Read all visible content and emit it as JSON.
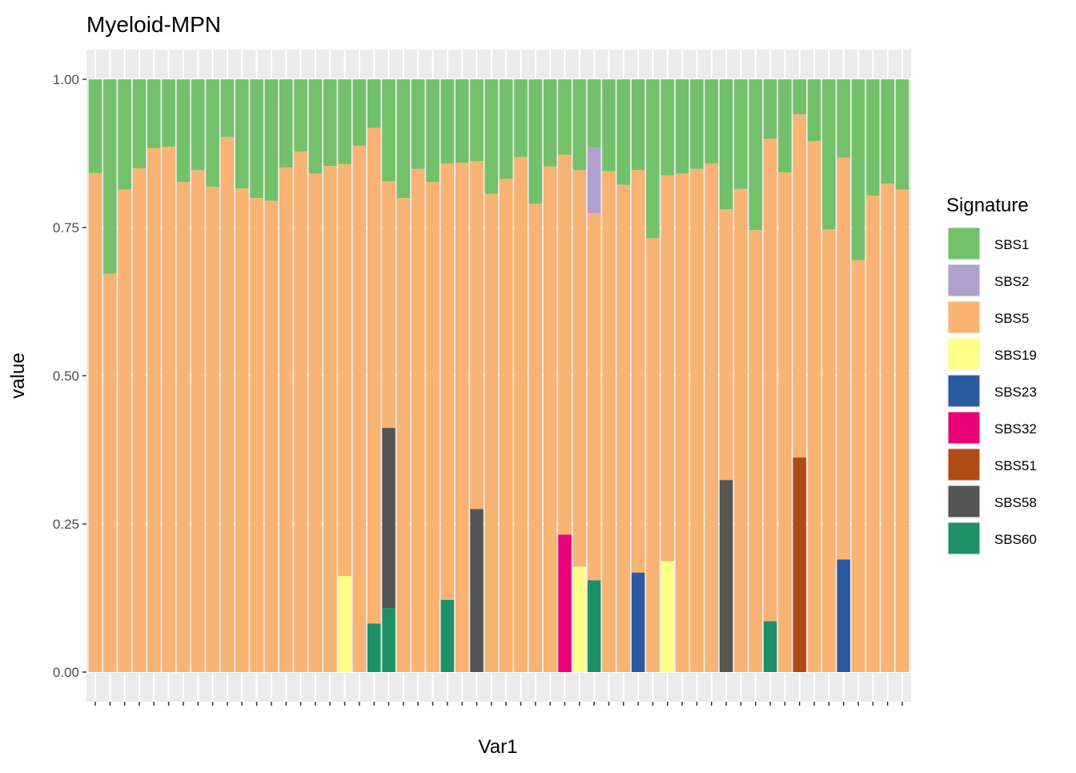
{
  "chart_data": {
    "type": "stacked_bar",
    "title": "Myeloid-MPN",
    "x_label": "Var1",
    "y_label": "value",
    "legend_title": "Signature",
    "categories": [
      null,
      null,
      null,
      null,
      null,
      null,
      null,
      null,
      null,
      null,
      null,
      null,
      null,
      null,
      null,
      null,
      null,
      null,
      null,
      null,
      null,
      null,
      null,
      null,
      null,
      null,
      null,
      null,
      null,
      null,
      null,
      null,
      null,
      null,
      null,
      null,
      null,
      null,
      null,
      null,
      null,
      null,
      null,
      null,
      null,
      null,
      null,
      null,
      null,
      null,
      null,
      null,
      null,
      null,
      null,
      null
    ],
    "ylim": [
      -0.05,
      1.05
    ],
    "yticks": [
      {
        "value": 0,
        "label": "0.00"
      },
      0.25,
      {
        "value": 0.5,
        "label": "0.50"
      },
      0.75,
      {
        "value": 1,
        "label": "1.00"
      }
    ],
    "grid": true,
    "series": [
      {
        "name": "SBS1",
        "color": "#72c16a",
        "values": [
          0.158,
          0.328,
          0.186,
          0.15,
          0.116,
          0.114,
          0.173,
          0.153,
          0.181,
          0.097,
          0.184,
          0.2,
          0.205,
          0.149,
          0.122,
          0.159,
          0.146,
          0.143,
          0.112,
          0.082,
          0.172,
          0.2,
          0.151,
          0.173,
          0.142,
          0.141,
          0.138,
          0.193,
          0.168,
          0.131,
          0.21,
          0.147,
          0.127,
          0.153,
          0.115,
          0.155,
          0.178,
          0.153,
          0.268,
          0.162,
          0.159,
          0.151,
          0.142,
          0.219,
          0.185,
          0.254,
          0.1,
          0.157,
          0.059,
          0.104,
          0.253,
          0.132,
          0.305,
          0.196,
          0.176,
          0.186
        ]
      },
      {
        "name": "SBS2",
        "color": "#b0a0ce",
        "values": [
          0,
          0,
          0,
          0,
          0,
          0,
          0,
          0,
          0,
          0,
          0,
          0,
          0,
          0,
          0,
          0,
          0,
          0,
          0,
          0,
          0,
          0,
          0,
          0,
          0,
          0,
          0,
          0,
          0,
          0,
          0,
          0,
          0,
          0,
          0.111,
          0,
          0,
          0,
          0,
          0,
          0,
          0,
          0,
          0,
          0,
          0,
          0,
          0,
          0,
          0,
          0,
          0,
          0,
          0,
          0,
          0
        ]
      },
      {
        "name": "SBS5",
        "color": "#f9b373",
        "values": [
          0.842,
          0.672,
          0.814,
          0.85,
          0.884,
          0.886,
          0.827,
          0.847,
          0.819,
          0.903,
          0.816,
          0.8,
          0.795,
          0.851,
          0.878,
          0.841,
          0.854,
          0.695,
          0.888,
          0.836,
          0.416,
          0.8,
          0.849,
          0.827,
          0.736,
          0.859,
          0.587,
          0.807,
          0.832,
          0.869,
          0.79,
          0.853,
          0.641,
          0.669,
          0.619,
          0.845,
          0.822,
          0.679,
          0.732,
          0.651,
          0.841,
          0.849,
          0.858,
          0.457,
          0.815,
          0.746,
          0.814,
          0.843,
          0.579,
          0.896,
          0.747,
          0.678,
          0.695,
          0.804,
          0.824,
          0.814
        ]
      },
      {
        "name": "SBS19",
        "color": "#ffff88",
        "values": [
          0,
          0,
          0,
          0,
          0,
          0,
          0,
          0,
          0,
          0,
          0,
          0,
          0,
          0,
          0,
          0,
          0,
          0.162,
          0,
          0,
          0,
          0,
          0,
          0,
          0,
          0,
          0,
          0,
          0,
          0,
          0,
          0,
          0,
          0.178,
          0,
          0,
          0,
          0,
          0,
          0.187,
          0,
          0,
          0,
          0,
          0,
          0,
          0,
          0,
          0,
          0,
          0,
          0,
          0,
          0,
          0,
          0
        ]
      },
      {
        "name": "SBS23",
        "color": "#2c5aa0",
        "values": [
          0,
          0,
          0,
          0,
          0,
          0,
          0,
          0,
          0,
          0,
          0,
          0,
          0,
          0,
          0,
          0,
          0,
          0,
          0,
          0,
          0,
          0,
          0,
          0,
          0,
          0,
          0,
          0,
          0,
          0,
          0,
          0,
          0,
          0,
          0,
          0,
          0,
          0.168,
          0,
          0,
          0,
          0,
          0,
          0,
          0,
          0,
          0,
          0,
          0,
          0,
          0,
          0.19,
          0,
          0,
          0,
          0
        ]
      },
      {
        "name": "SBS32",
        "color": "#ea0277",
        "values": [
          0,
          0,
          0,
          0,
          0,
          0,
          0,
          0,
          0,
          0,
          0,
          0,
          0,
          0,
          0,
          0,
          0,
          0,
          0,
          0,
          0,
          0,
          0,
          0,
          0,
          0,
          0,
          0,
          0,
          0,
          0,
          0,
          0.232,
          0,
          0,
          0,
          0,
          0,
          0,
          0,
          0,
          0,
          0,
          0,
          0,
          0,
          0,
          0,
          0,
          0,
          0,
          0,
          0,
          0,
          0,
          0
        ]
      },
      {
        "name": "SBS51",
        "color": "#b04a16",
        "values": [
          0,
          0,
          0,
          0,
          0,
          0,
          0,
          0,
          0,
          0,
          0,
          0,
          0,
          0,
          0,
          0,
          0,
          0,
          0,
          0,
          0,
          0,
          0,
          0,
          0,
          0,
          0,
          0,
          0,
          0,
          0,
          0,
          0,
          0,
          0,
          0,
          0,
          0,
          0,
          0,
          0,
          0,
          0,
          0,
          0,
          0,
          0,
          0,
          0.362,
          0,
          0,
          0,
          0,
          0,
          0,
          0
        ]
      },
      {
        "name": "SBS58",
        "color": "#555555",
        "values": [
          0,
          0,
          0,
          0,
          0,
          0,
          0,
          0,
          0,
          0,
          0,
          0,
          0,
          0,
          0,
          0,
          0,
          0,
          0,
          0,
          0.304,
          0,
          0,
          0,
          0,
          0,
          0.275,
          0,
          0,
          0,
          0,
          0,
          0,
          0,
          0,
          0,
          0,
          0,
          0,
          0,
          0,
          0,
          0,
          0.324,
          0,
          0,
          0,
          0,
          0,
          0,
          0,
          0,
          0,
          0,
          0,
          0
        ]
      },
      {
        "name": "SBS60",
        "color": "#1e9068",
        "values": [
          0,
          0,
          0,
          0,
          0,
          0,
          0,
          0,
          0,
          0,
          0,
          0,
          0,
          0,
          0,
          0,
          0,
          0,
          0,
          0.082,
          0.108,
          0,
          0,
          0,
          0.122,
          0,
          0,
          0,
          0,
          0,
          0,
          0,
          0,
          0,
          0.155,
          0,
          0,
          0,
          0,
          0,
          0,
          0,
          0,
          0,
          0,
          0,
          0.086,
          0,
          0,
          0,
          0,
          0,
          0,
          0,
          0,
          0
        ]
      }
    ]
  }
}
